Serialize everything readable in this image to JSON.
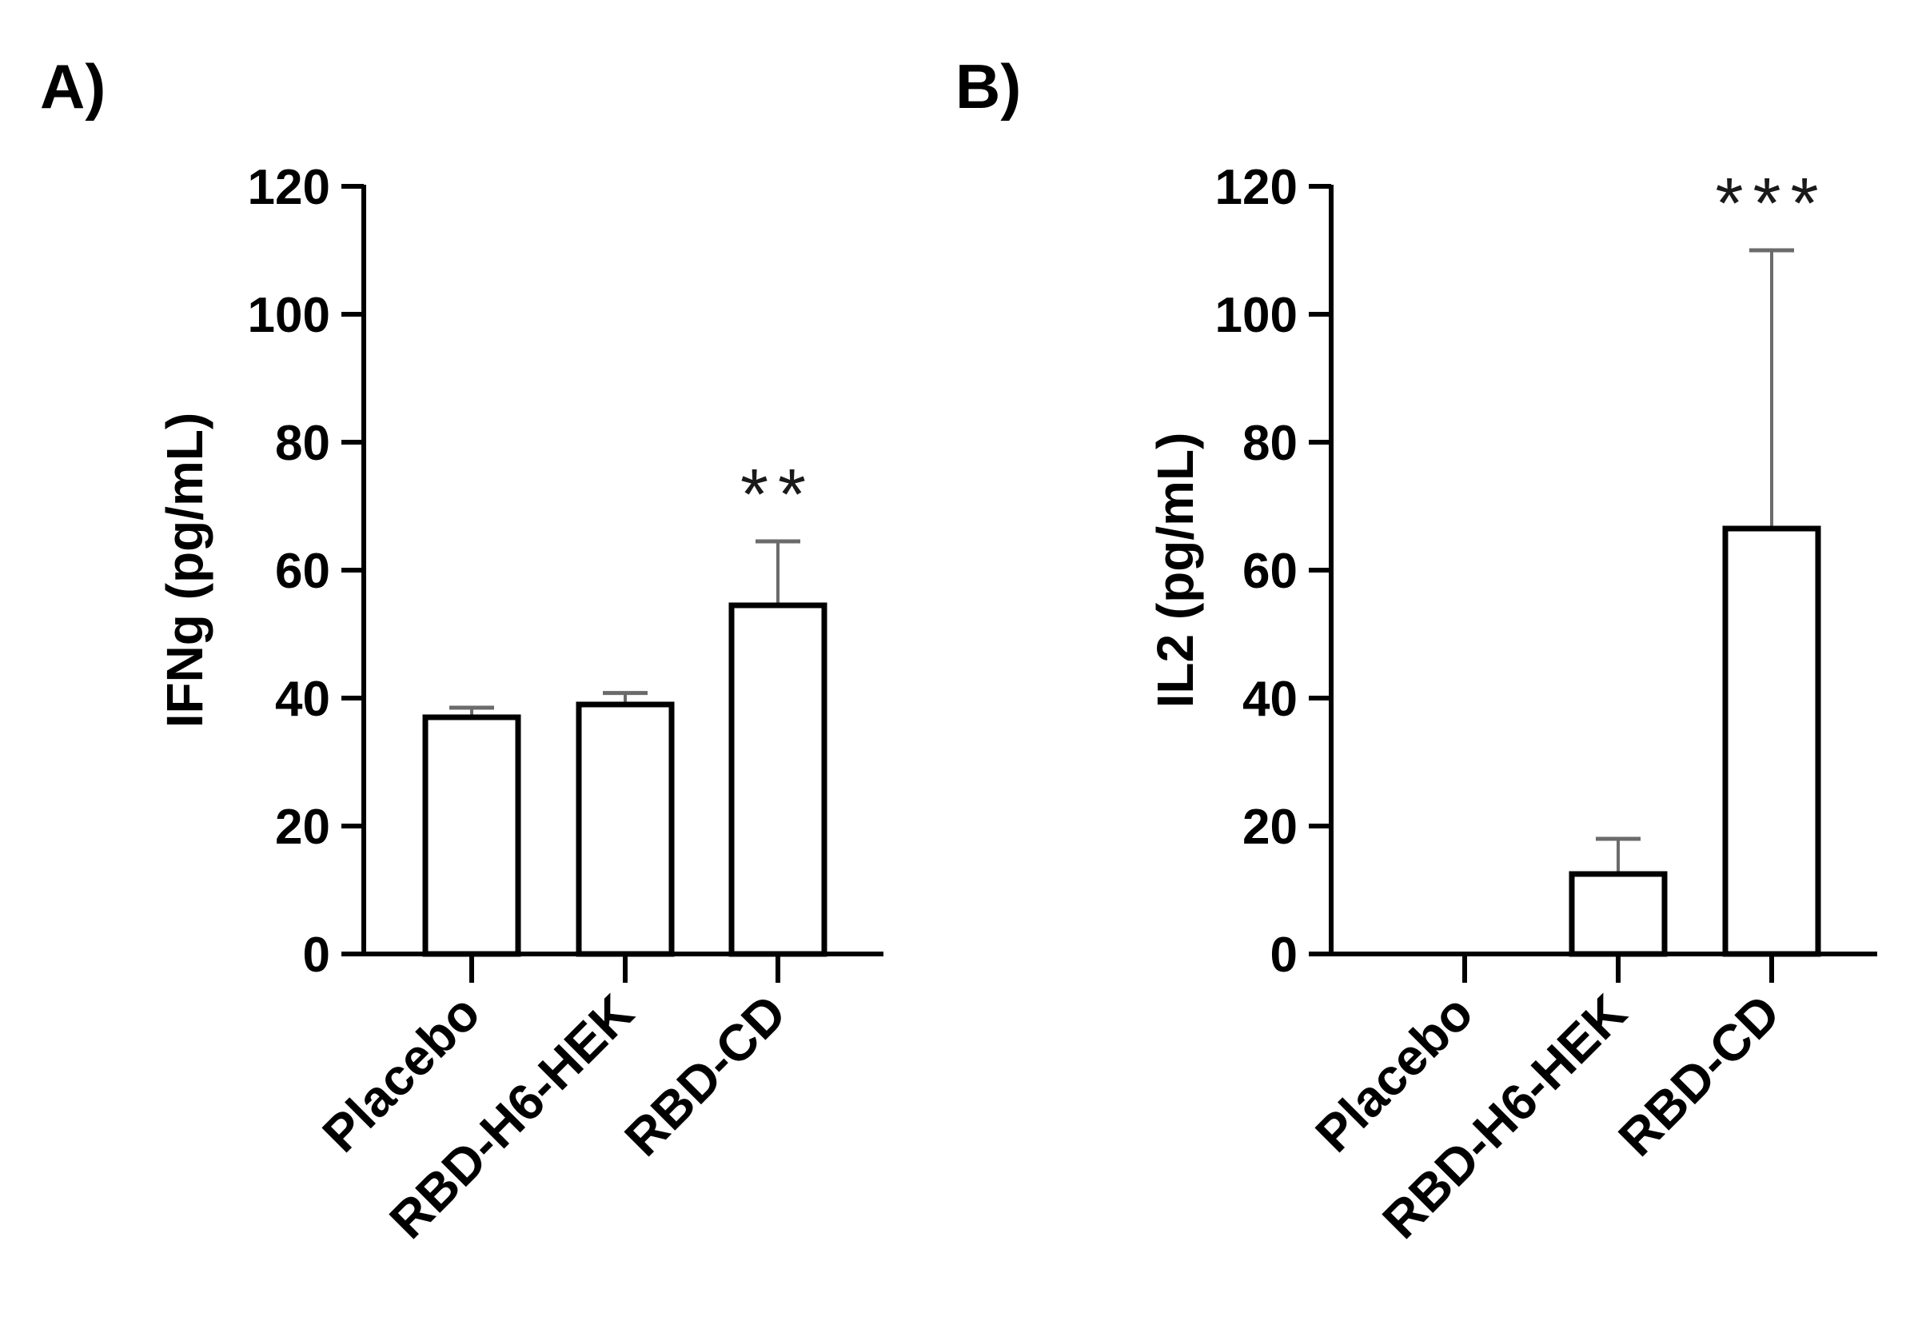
{
  "chart_data": [
    {
      "panel_label": "A)",
      "type": "bar",
      "categories": [
        "Placebo",
        "RBD-H6-HEK",
        "RBD-CD"
      ],
      "values": [
        37,
        39,
        54.5
      ],
      "errors": [
        1.5,
        1.8,
        10
      ],
      "significance": [
        "",
        "",
        "**"
      ],
      "ylabel": "IFNg (pg/mL)",
      "xlabel": "",
      "ylim": [
        0,
        120
      ],
      "yticks": [
        0,
        20,
        40,
        60,
        80,
        100,
        120
      ]
    },
    {
      "panel_label": "B)",
      "type": "bar",
      "categories": [
        "Placebo",
        "RBD-H6-HEK",
        "RBD-CD"
      ],
      "values": [
        0,
        12.5,
        66.5
      ],
      "errors": [
        0,
        5.5,
        43.5
      ],
      "significance": [
        "",
        "",
        "***"
      ],
      "ylabel": "IL2 (pg/mL)",
      "xlabel": "",
      "ylim": [
        0,
        120
      ],
      "yticks": [
        0,
        20,
        40,
        60,
        80,
        100,
        120
      ]
    }
  ],
  "colors": {
    "bar_fill": "#ffffff",
    "bar_stroke": "#000000",
    "error_bar": "#6b6b6b",
    "axis": "#000000"
  }
}
